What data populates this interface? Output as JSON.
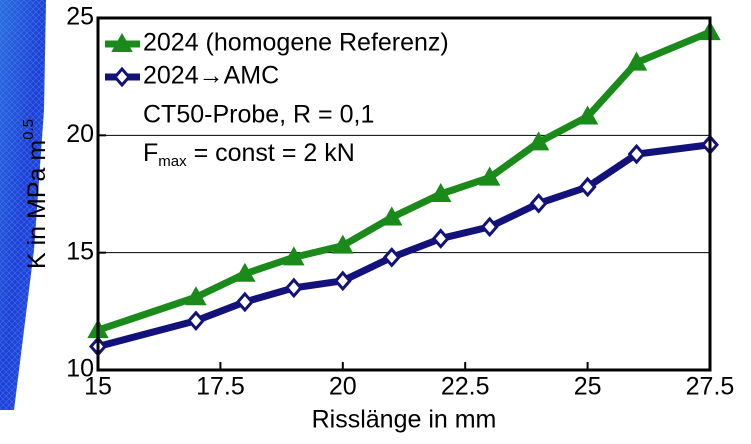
{
  "chart_data": {
    "type": "line",
    "xlabel": "Risslänge in mm",
    "ylabel": {
      "text": "K in MPa m",
      "superscript": "0.5"
    },
    "annotations": [
      "CT50-Probe, R = 0,1",
      {
        "base": "F",
        "subscript": "max",
        "text": " = const = 2 kN"
      }
    ],
    "x": [
      15,
      17,
      18,
      19,
      20,
      21,
      22,
      23,
      24,
      25,
      26,
      27.5
    ],
    "series": [
      {
        "name": "2024 (homogene Referenz)",
        "color": "#1a8a1a",
        "marker": "triangle",
        "values": [
          11.7,
          13.1,
          14.1,
          14.8,
          15.3,
          16.5,
          17.5,
          18.2,
          19.7,
          20.8,
          23.1,
          24.4
        ]
      },
      {
        "name": "2024→AMC",
        "color": "#12127a",
        "marker": "diamond",
        "values": [
          11.0,
          12.1,
          12.9,
          13.5,
          13.8,
          14.8,
          15.6,
          16.1,
          17.1,
          17.8,
          19.2,
          19.6
        ]
      }
    ],
    "xlim": [
      15,
      27.5
    ],
    "xticks": [
      15,
      17.5,
      20,
      22.5,
      25,
      27.5
    ],
    "ylim": [
      10,
      25
    ],
    "yticks": [
      10,
      15,
      20,
      25
    ],
    "grid": "y",
    "legend": "upper left"
  }
}
